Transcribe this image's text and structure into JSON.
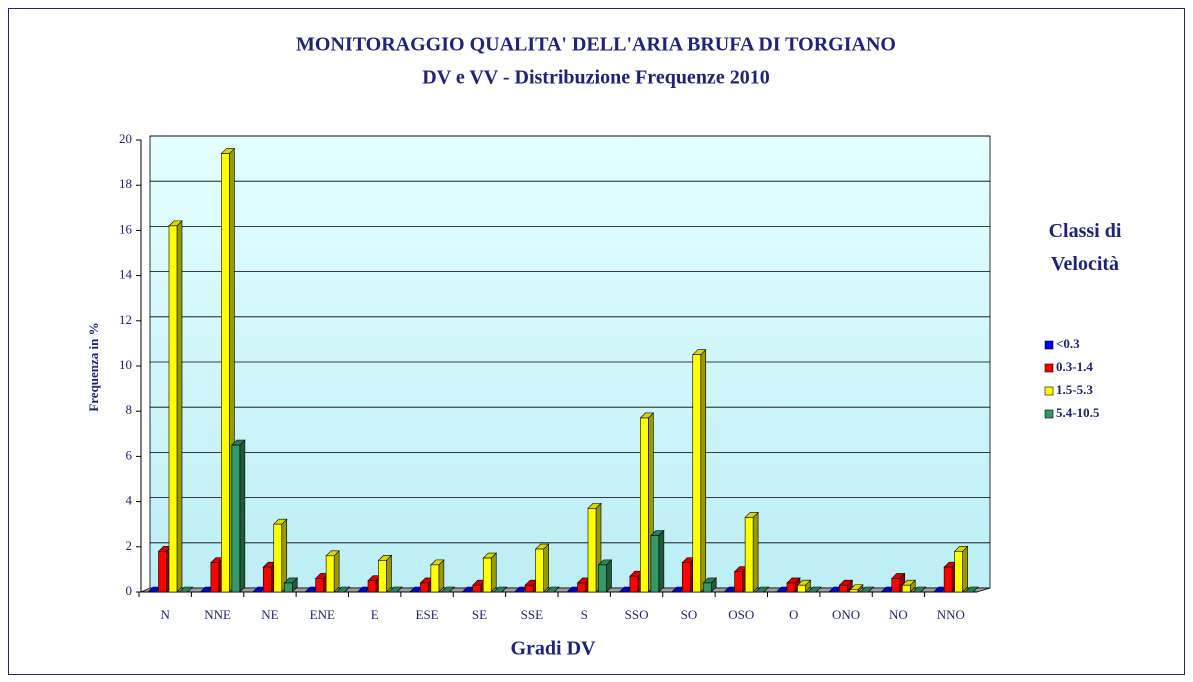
{
  "chart_data": {
    "type": "bar",
    "title": "MONITORAGGIO QUALITA' DELL'ARIA BRUFA DI TORGIANO",
    "subtitle": "DV e VV - Distribuzione Frequenze 2010",
    "x_label": "Gradi DV",
    "y_label": "Frequenza  in %",
    "legend_title": "Classi di Velocità",
    "legend_position": "right",
    "grid": true,
    "categories": [
      "N",
      "NNE",
      "NE",
      "ENE",
      "E",
      "ESE",
      "SE",
      "SSE",
      "S",
      "SSO",
      "SO",
      "OSO",
      "O",
      "ONO",
      "NO",
      "NNO"
    ],
    "ylim": [
      0,
      20
    ],
    "yticks": [
      0,
      2,
      4,
      6,
      8,
      10,
      12,
      14,
      16,
      18,
      20
    ],
    "series": [
      {
        "name": "<0.3",
        "color": "#0000ff",
        "values": [
          0,
          0,
          0,
          0,
          0,
          0,
          0,
          0,
          0,
          0,
          0,
          0,
          0,
          0,
          0,
          0
        ]
      },
      {
        "name": "0.3-1.4",
        "color": "#ff0000",
        "values": [
          1.8,
          1.3,
          1.1,
          0.6,
          0.5,
          0.4,
          0.3,
          0.3,
          0.4,
          0.7,
          1.3,
          0.9,
          0.4,
          0.3,
          0.6,
          1.1
        ]
      },
      {
        "name": "1.5-5.3",
        "color": "#ffff00",
        "values": [
          16.2,
          19.4,
          3.0,
          1.6,
          1.4,
          1.2,
          1.5,
          1.9,
          3.7,
          7.7,
          10.5,
          3.3,
          0.3,
          0.1,
          0.3,
          1.8
        ]
      },
      {
        "name": "5.4-10.5",
        "color": "#339966",
        "values": [
          0,
          6.5,
          0.4,
          0,
          0,
          0,
          0,
          0,
          1.2,
          2.5,
          0.4,
          0,
          0,
          0,
          0,
          0
        ]
      }
    ]
  }
}
